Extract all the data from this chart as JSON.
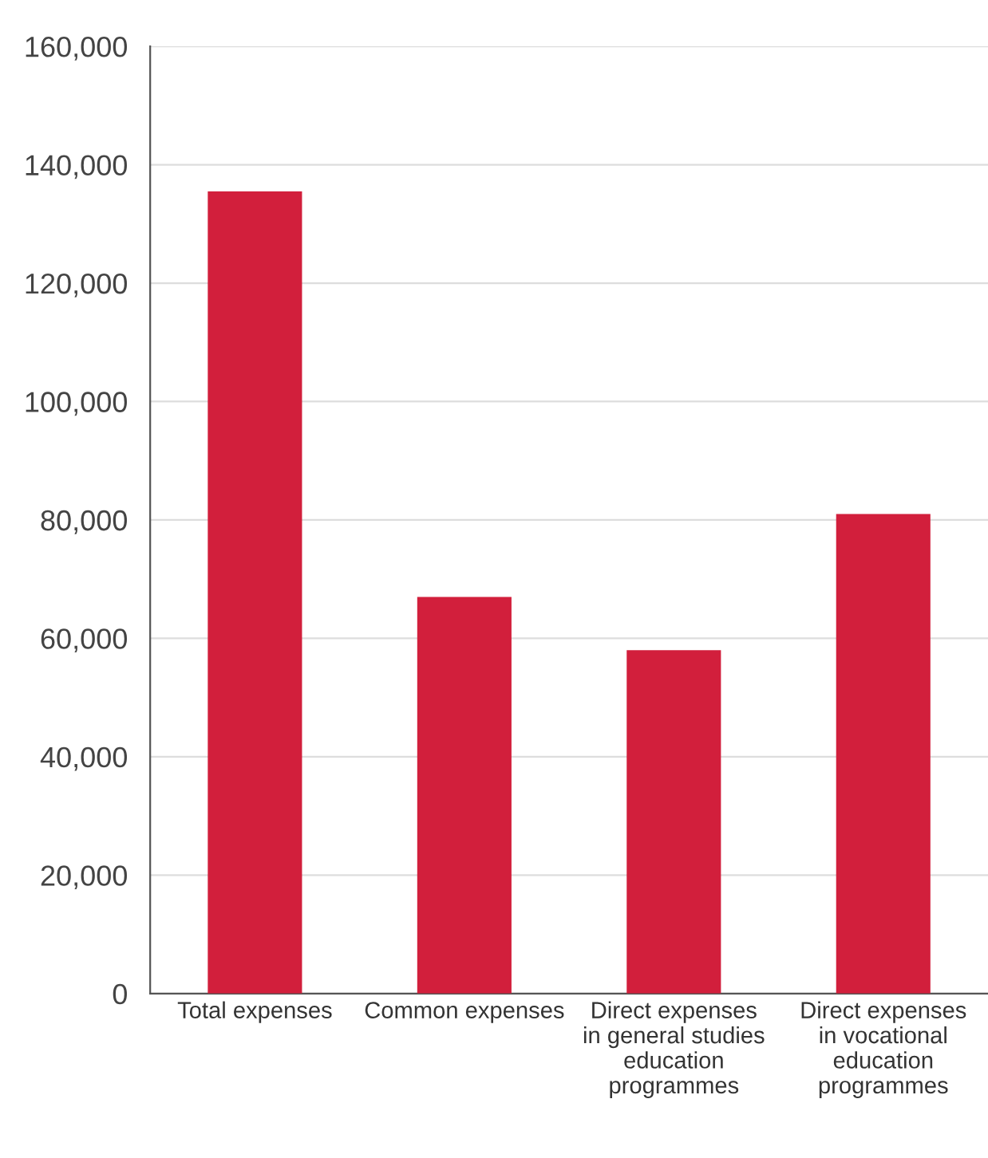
{
  "chart_data": {
    "type": "bar",
    "categories": [
      "Total expenses",
      "Common expenses",
      "Direct expenses\nin general studies\neducation\nprogrammes",
      "Direct expenses\nin vocational\neducation\nprogrammes"
    ],
    "values": [
      135500,
      67000,
      58000,
      81000
    ],
    "color": "#d21f3c",
    "ylim": [
      0,
      160000
    ],
    "yticks": [
      0,
      {
        "value": 20000,
        "label": "20,000"
      },
      {
        "value": 40000,
        "label": "40,000"
      },
      {
        "value": 60000,
        "label": "60,000"
      },
      {
        "value": 80000,
        "label": "80,000"
      },
      {
        "value": 100000,
        "label": "100,000"
      },
      {
        "value": 120000,
        "label": "120,000"
      },
      {
        "value": 140000,
        "label": "140,000"
      },
      {
        "value": 160000,
        "label": "160,000"
      }
    ],
    "grid": "y"
  }
}
